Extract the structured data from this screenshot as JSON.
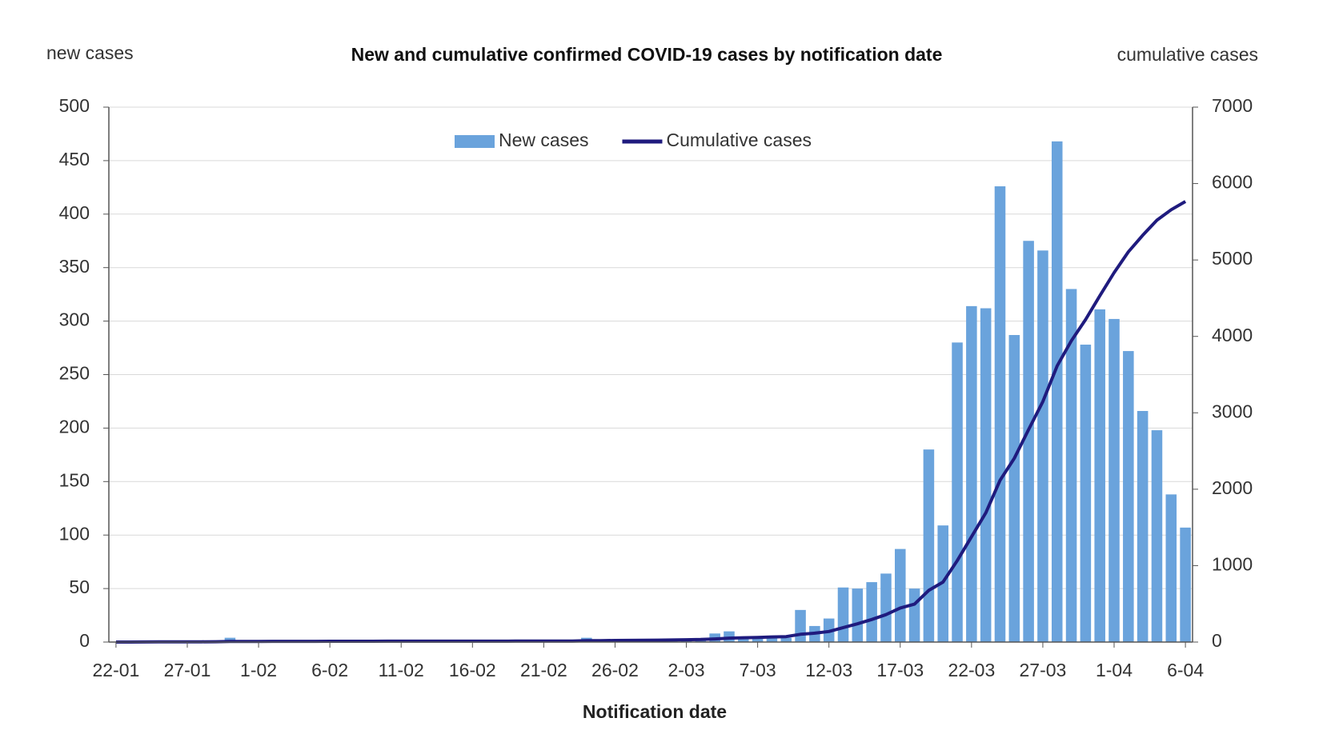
{
  "chart_data": {
    "type": "bar",
    "title": "New and cumulative confirmed COVID-19 cases by notification date",
    "y_label": "new cases",
    "y2_label": "cumulative cases",
    "x_label": "Notification date",
    "categories": [
      "22-01",
      null,
      null,
      null,
      null,
      "27-01",
      null,
      null,
      null,
      null,
      "1-02",
      null,
      null,
      null,
      null,
      "6-02",
      null,
      null,
      null,
      null,
      "11-02",
      null,
      null,
      null,
      null,
      "16-02",
      null,
      null,
      null,
      null,
      "21-02",
      null,
      null,
      null,
      null,
      "26-02",
      null,
      null,
      null,
      null,
      "2-03",
      null,
      null,
      null,
      null,
      "7-03",
      null,
      null,
      null,
      null,
      "12-03",
      null,
      null,
      null,
      null,
      "17-03",
      null,
      null,
      null,
      null,
      "22-03",
      null,
      null,
      null,
      null,
      "27-03",
      null,
      null,
      null,
      null,
      "1-04",
      null,
      null,
      null,
      null,
      "6-04"
    ],
    "series": [
      {
        "name": "New cases",
        "type": "bar",
        "color": "#6aa3dc",
        "values": [
          0,
          0,
          1,
          1,
          1,
          0,
          0,
          1,
          4,
          0,
          0,
          1,
          0,
          0,
          0,
          1,
          0,
          0,
          0,
          1,
          0,
          0,
          0,
          0,
          1,
          0,
          0,
          0,
          1,
          0,
          1,
          0,
          0,
          4,
          1,
          2,
          1,
          1,
          2,
          2,
          3,
          3,
          8,
          10,
          5,
          5,
          6,
          4,
          30,
          15,
          22,
          51,
          50,
          56,
          64,
          87,
          50,
          180,
          109,
          280,
          314,
          312,
          426,
          287,
          375,
          366,
          468,
          330,
          278,
          311,
          302,
          272,
          216,
          198,
          138,
          107
        ]
      },
      {
        "name": "Cumulative cases",
        "type": "line",
        "axis": "y2",
        "color": "#1f1b7e",
        "values": [
          0,
          0,
          1,
          2,
          3,
          3,
          3,
          4,
          8,
          8,
          8,
          9,
          9,
          9,
          9,
          10,
          10,
          10,
          10,
          11,
          11,
          11,
          11,
          11,
          12,
          12,
          12,
          12,
          13,
          13,
          14,
          14,
          14,
          18,
          19,
          21,
          22,
          23,
          25,
          27,
          30,
          33,
          41,
          51,
          56,
          61,
          67,
          71,
          101,
          116,
          138,
          189,
          239,
          295,
          359,
          446,
          496,
          676,
          785,
          1065,
          1379,
          1691,
          2117,
          2404,
          2779,
          3145,
          3613,
          3943,
          4221,
          4532,
          4834,
          5106,
          5322,
          5520,
          5658,
          5765
        ]
      }
    ],
    "ylim": [
      0,
      500
    ],
    "yticks": [
      0,
      50,
      100,
      150,
      200,
      250,
      300,
      350,
      400,
      450,
      500
    ],
    "y2lim": [
      0,
      7000
    ],
    "y2ticks": [
      0,
      1000,
      2000,
      3000,
      4000,
      5000,
      6000,
      7000
    ],
    "grid": true,
    "legend": "top"
  }
}
